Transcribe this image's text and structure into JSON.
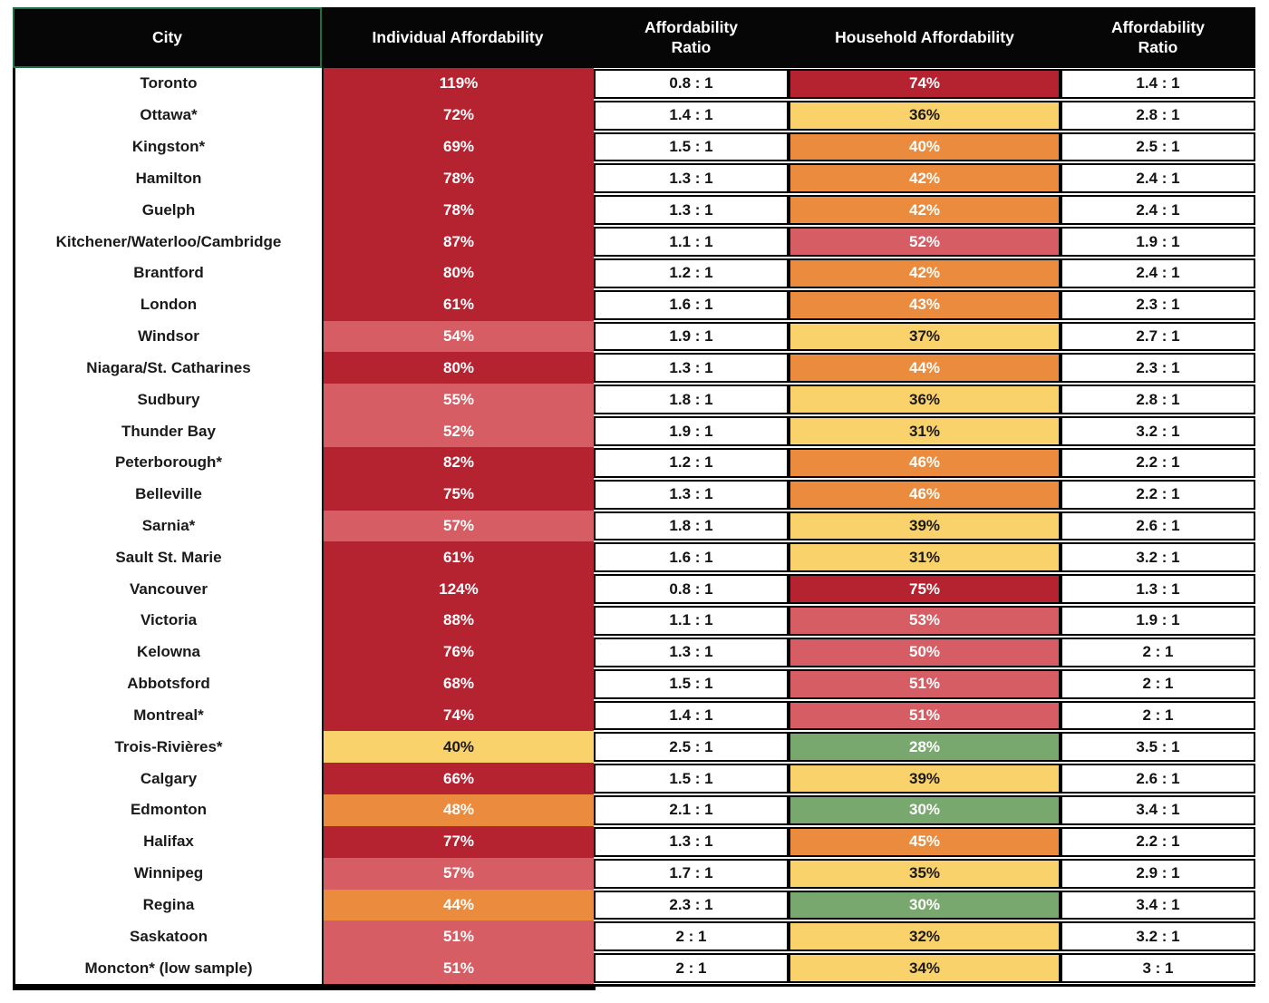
{
  "chart_data": {
    "type": "table",
    "title": "City housing affordability table with conditional color formatting",
    "columns": [
      "City",
      "Individual Affordability",
      "Affordability\nRatio",
      "Household Affordability",
      "Affordability\nRatio"
    ],
    "rows": [
      {
        "city": "Toronto",
        "individual": "119%",
        "individual_color": "dark_red",
        "ratio1": "0.8 : 1",
        "household": "74%",
        "household_color": "dark_red",
        "ratio2": "1.4 : 1"
      },
      {
        "city": "Ottawa*",
        "individual": "72%",
        "individual_color": "dark_red",
        "ratio1": "1.4 : 1",
        "household": "36%",
        "household_color": "yellow",
        "ratio2": "2.8 : 1"
      },
      {
        "city": "Kingston*",
        "individual": "69%",
        "individual_color": "dark_red",
        "ratio1": "1.5 : 1",
        "household": "40%",
        "household_color": "orange",
        "ratio2": "2.5 : 1"
      },
      {
        "city": "Hamilton",
        "individual": "78%",
        "individual_color": "dark_red",
        "ratio1": "1.3 : 1",
        "household": "42%",
        "household_color": "orange",
        "ratio2": "2.4 : 1"
      },
      {
        "city": "Guelph",
        "individual": "78%",
        "individual_color": "dark_red",
        "ratio1": "1.3 : 1",
        "household": "42%",
        "household_color": "orange",
        "ratio2": "2.4 : 1"
      },
      {
        "city": "Kitchener/Waterloo/Cambridge",
        "individual": "87%",
        "individual_color": "dark_red",
        "ratio1": "1.1 : 1",
        "household": "52%",
        "household_color": "light_red",
        "ratio2": "1.9 : 1"
      },
      {
        "city": "Brantford",
        "individual": "80%",
        "individual_color": "dark_red",
        "ratio1": "1.2 : 1",
        "household": "42%",
        "household_color": "orange",
        "ratio2": "2.4 : 1"
      },
      {
        "city": "London",
        "individual": "61%",
        "individual_color": "dark_red",
        "ratio1": "1.6 : 1",
        "household": "43%",
        "household_color": "orange",
        "ratio2": "2.3 : 1"
      },
      {
        "city": "Windsor",
        "individual": "54%",
        "individual_color": "light_red",
        "ratio1": "1.9 : 1",
        "household": "37%",
        "household_color": "yellow",
        "ratio2": "2.7 : 1"
      },
      {
        "city": "Niagara/St. Catharines",
        "individual": "80%",
        "individual_color": "dark_red",
        "ratio1": "1.3 : 1",
        "household": "44%",
        "household_color": "orange",
        "ratio2": "2.3 : 1"
      },
      {
        "city": "Sudbury",
        "individual": "55%",
        "individual_color": "light_red",
        "ratio1": "1.8 : 1",
        "household": "36%",
        "household_color": "yellow",
        "ratio2": "2.8 : 1"
      },
      {
        "city": "Thunder Bay",
        "individual": "52%",
        "individual_color": "light_red",
        "ratio1": "1.9 : 1",
        "household": "31%",
        "household_color": "yellow",
        "ratio2": "3.2 : 1"
      },
      {
        "city": "Peterborough*",
        "individual": "82%",
        "individual_color": "dark_red",
        "ratio1": "1.2 : 1",
        "household": "46%",
        "household_color": "orange",
        "ratio2": "2.2 : 1"
      },
      {
        "city": "Belleville",
        "individual": "75%",
        "individual_color": "dark_red",
        "ratio1": "1.3 : 1",
        "household": "46%",
        "household_color": "orange",
        "ratio2": "2.2 : 1"
      },
      {
        "city": "Sarnia*",
        "individual": "57%",
        "individual_color": "light_red",
        "ratio1": "1.8 : 1",
        "household": "39%",
        "household_color": "yellow",
        "ratio2": "2.6 : 1"
      },
      {
        "city": "Sault St. Marie",
        "individual": "61%",
        "individual_color": "dark_red",
        "ratio1": "1.6 : 1",
        "household": "31%",
        "household_color": "yellow",
        "ratio2": "3.2 : 1"
      },
      {
        "city": "Vancouver",
        "individual": "124%",
        "individual_color": "dark_red",
        "ratio1": "0.8 : 1",
        "household": "75%",
        "household_color": "dark_red",
        "ratio2": "1.3 : 1"
      },
      {
        "city": "Victoria",
        "individual": "88%",
        "individual_color": "dark_red",
        "ratio1": "1.1 : 1",
        "household": "53%",
        "household_color": "light_red",
        "ratio2": "1.9 : 1"
      },
      {
        "city": "Kelowna",
        "individual": "76%",
        "individual_color": "dark_red",
        "ratio1": "1.3 : 1",
        "household": "50%",
        "household_color": "light_red",
        "ratio2": "2 : 1"
      },
      {
        "city": "Abbotsford",
        "individual": "68%",
        "individual_color": "dark_red",
        "ratio1": "1.5 : 1",
        "household": "51%",
        "household_color": "light_red",
        "ratio2": "2 : 1"
      },
      {
        "city": "Montreal*",
        "individual": "74%",
        "individual_color": "dark_red",
        "ratio1": "1.4 : 1",
        "household": "51%",
        "household_color": "light_red",
        "ratio2": "2 : 1"
      },
      {
        "city": "Trois-Rivières*",
        "individual": "40%",
        "individual_color": "yellow",
        "ratio1": "2.5 : 1",
        "household": "28%",
        "household_color": "green",
        "ratio2": "3.5 : 1"
      },
      {
        "city": "Calgary",
        "individual": "66%",
        "individual_color": "dark_red",
        "ratio1": "1.5 : 1",
        "household": "39%",
        "household_color": "yellow",
        "ratio2": "2.6 : 1"
      },
      {
        "city": "Edmonton",
        "individual": "48%",
        "individual_color": "orange",
        "ratio1": "2.1 : 1",
        "household": "30%",
        "household_color": "green",
        "ratio2": "3.4 : 1"
      },
      {
        "city": "Halifax",
        "individual": "77%",
        "individual_color": "dark_red",
        "ratio1": "1.3 : 1",
        "household": "45%",
        "household_color": "orange",
        "ratio2": "2.2 : 1"
      },
      {
        "city": "Winnipeg",
        "individual": "57%",
        "individual_color": "light_red",
        "ratio1": "1.7 : 1",
        "household": "35%",
        "household_color": "yellow",
        "ratio2": "2.9 : 1"
      },
      {
        "city": "Regina",
        "individual": "44%",
        "individual_color": "orange",
        "ratio1": "2.3 : 1",
        "household": "30%",
        "household_color": "green",
        "ratio2": "3.4 : 1"
      },
      {
        "city": "Saskatoon",
        "individual": "51%",
        "individual_color": "light_red",
        "ratio1": "2 : 1",
        "household": "32%",
        "household_color": "yellow",
        "ratio2": "3.2 : 1"
      },
      {
        "city": "Moncton* (low sample)",
        "individual": "51%",
        "individual_color": "light_red",
        "ratio1": "2 : 1",
        "household": "34%",
        "household_color": "yellow",
        "ratio2": "3 : 1"
      }
    ],
    "colors": {
      "dark_red": "#B52230",
      "light_red": "#D65D63",
      "orange": "#EA8B3E",
      "yellow": "#FAD26B",
      "green": "#79A86E",
      "header_bg": "#060606",
      "header_text": "#FFFFFF",
      "selection_border": "#1E7145",
      "grid_border": "#000000",
      "text_dark": "#1A1A1A",
      "text_light": "#FFFFFF"
    }
  }
}
